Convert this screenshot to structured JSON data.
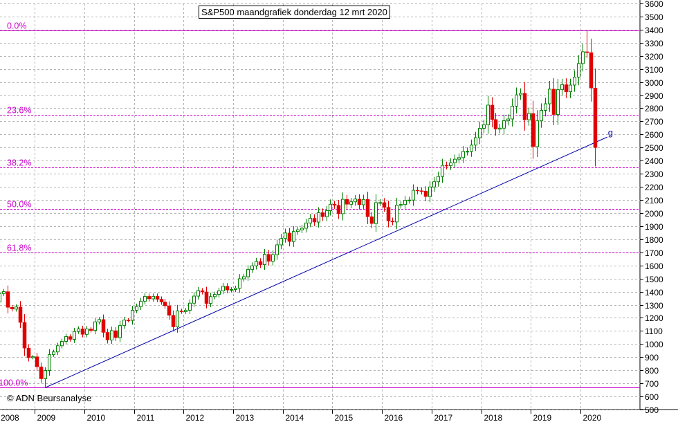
{
  "colors": {
    "background": "#ffffff",
    "fib_line": "#cc00cc",
    "fib_label": "#cc00cc",
    "grid": "#b4b4b4",
    "trendline": "#0000aa",
    "up_candle": "#008000",
    "down_candle": "#e00000",
    "axis_text": "#000000"
  },
  "chart_data": {
    "type": "candlestick",
    "title": "S&P500 maandgrafiek donderdag 12 mrt 2020",
    "copyright": "© ADN Beursanalyse",
    "y_axis": {
      "position": "right",
      "range": [
        500,
        3600
      ],
      "ticks": [
        500,
        600,
        700,
        800,
        900,
        1000,
        1100,
        1200,
        1300,
        1400,
        1500,
        1600,
        1700,
        1800,
        1900,
        2000,
        2100,
        2200,
        2300,
        2400,
        2500,
        2600,
        2700,
        2800,
        2900,
        3000,
        3100,
        3200,
        3300,
        3400,
        3500,
        3600
      ]
    },
    "x_axis": {
      "range": [
        "2008-03",
        "2020-08"
      ],
      "year_labels": [
        "2008",
        "2009",
        "2010",
        "2011",
        "2012",
        "2013",
        "2014",
        "2015",
        "2016",
        "2017",
        "2018",
        "2019",
        "2020"
      ]
    },
    "fibonacci_levels": [
      {
        "label": "0.0%",
        "value": 3394
      },
      {
        "label": "23.6%",
        "value": 2750
      },
      {
        "label": "38.2%",
        "value": 2350
      },
      {
        "label": "50.0%",
        "value": 2030
      },
      {
        "label": "61.8%",
        "value": 1700
      },
      {
        "label": "100.0%",
        "value": 667
      }
    ],
    "trendline": {
      "label": "g",
      "start": {
        "date": "2009-03",
        "value": 667
      },
      "end": {
        "date": "2020-07",
        "value": 2580
      }
    },
    "grid": "dashed",
    "monthly_closes": [
      {
        "start": "2008-03",
        "closes": [
          1322,
          1386,
          1400,
          1280,
          1267,
          1283,
          1165,
          969,
          896,
          903,
          826,
          735,
          798,
          919,
          940,
          987,
          1020,
          1057,
          1036,
          1096,
          1116,
          1074,
          1115,
          1104,
          1169,
          1187,
          1089,
          1031,
          1102,
          1049,
          1141,
          1183,
          1181,
          1258,
          1286,
          1327,
          1364,
          1345,
          1364,
          1342,
          1321,
          1292,
          1219,
          1131,
          1253,
          1247,
          1258,
          1312,
          1366,
          1408,
          1398,
          1310,
          1362,
          1379,
          1406,
          1441,
          1412,
          1416,
          1426,
          1498,
          1514,
          1569,
          1597,
          1630,
          1606,
          1685,
          1632,
          1682,
          1757,
          1806,
          1848,
          1783,
          1859,
          1872,
          1884,
          1924,
          1960,
          1931,
          2003,
          1972,
          2018,
          2067,
          2059,
          1995,
          2105,
          2067,
          2086,
          2107,
          2063,
          2104,
          1972,
          1920,
          2079,
          2080,
          2044,
          1940,
          1932,
          2060,
          2065,
          2097,
          2099,
          2174,
          2170,
          2168,
          2126,
          2199,
          2239,
          2279,
          2364,
          2362,
          2384,
          2411,
          2423,
          2470,
          2471,
          2519,
          2575,
          2647,
          2674,
          2824,
          2714,
          2641,
          2648,
          2705,
          2718,
          2816,
          2902,
          2914,
          2712,
          2760,
          2507,
          2704,
          2784,
          2834,
          2946,
          2752,
          2942,
          2980,
          2926,
          2977,
          3038,
          3141,
          3231,
          3225,
          2954,
          2500
        ]
      }
    ],
    "range_extremes": [
      {
        "date": "2009-03",
        "low": 667
      },
      {
        "date": "2020-02",
        "high": 3394
      }
    ]
  }
}
